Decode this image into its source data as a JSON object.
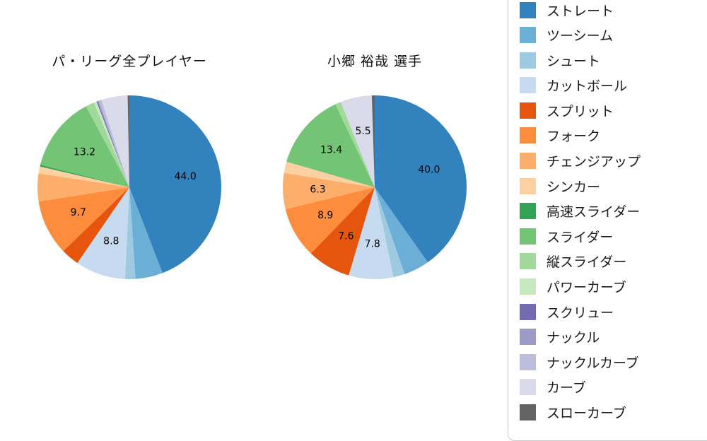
{
  "page": {
    "background": "#ffffff"
  },
  "legend": {
    "items": [
      {
        "label": "ストレート",
        "color": "#3182bd"
      },
      {
        "label": "ツーシーム",
        "color": "#6baed6"
      },
      {
        "label": "シュート",
        "color": "#9ecae1"
      },
      {
        "label": "カットボール",
        "color": "#c6dbef"
      },
      {
        "label": "スプリット",
        "color": "#e6550d"
      },
      {
        "label": "フォーク",
        "color": "#fd8d3c"
      },
      {
        "label": "チェンジアップ",
        "color": "#fdae6b"
      },
      {
        "label": "シンカー",
        "color": "#fdd0a2"
      },
      {
        "label": "高速スライダー",
        "color": "#31a354"
      },
      {
        "label": "スライダー",
        "color": "#74c476"
      },
      {
        "label": "縦スライダー",
        "color": "#a1d99b"
      },
      {
        "label": "パワーカーブ",
        "color": "#c7e9c0"
      },
      {
        "label": "スクリュー",
        "color": "#756bb1"
      },
      {
        "label": "ナックル",
        "color": "#9e9ac8"
      },
      {
        "label": "ナックルカーブ",
        "color": "#bcbddc"
      },
      {
        "label": "カーブ",
        "color": "#dadaeb"
      },
      {
        "label": "スローカーブ",
        "color": "#636363"
      }
    ]
  },
  "chart_data": [
    {
      "type": "pie",
      "title": "パ・リーグ全プレイヤー",
      "start_angle": "top",
      "direction": "clockwise",
      "slices": [
        {
          "name": "ストレート",
          "value": 44.0,
          "label": "44.0"
        },
        {
          "name": "ツーシーム",
          "value": 4.8
        },
        {
          "name": "シュート",
          "value": 1.8
        },
        {
          "name": "カットボール",
          "value": 8.8,
          "label": "8.8"
        },
        {
          "name": "スプリット",
          "value": 3.2
        },
        {
          "name": "フォーク",
          "value": 9.7,
          "label": "9.7"
        },
        {
          "name": "チェンジアップ",
          "value": 4.9
        },
        {
          "name": "シンカー",
          "value": 1.2
        },
        {
          "name": "高速スライダー",
          "value": 0.3
        },
        {
          "name": "スライダー",
          "value": 13.2,
          "label": "13.2"
        },
        {
          "name": "縦スライダー",
          "value": 1.5
        },
        {
          "name": "パワーカーブ",
          "value": 0.5
        },
        {
          "name": "スクリュー",
          "value": 0.2
        },
        {
          "name": "ナックル",
          "value": 0.2
        },
        {
          "name": "ナックルカーブ",
          "value": 0.5
        },
        {
          "name": "カーブ",
          "value": 4.6
        },
        {
          "name": "スローカーブ",
          "value": 0.3
        }
      ]
    },
    {
      "type": "pie",
      "title": "小郷 裕哉  選手",
      "start_angle": "top",
      "direction": "clockwise",
      "slices": [
        {
          "name": "ストレート",
          "value": 40.0,
          "label": "40.0"
        },
        {
          "name": "ツーシーム",
          "value": 4.5
        },
        {
          "name": "シュート",
          "value": 2.0
        },
        {
          "name": "カットボール",
          "value": 7.8,
          "label": "7.8"
        },
        {
          "name": "スプリット",
          "value": 7.6,
          "label": "7.6"
        },
        {
          "name": "フォーク",
          "value": 8.9,
          "label": "8.9"
        },
        {
          "name": "チェンジアップ",
          "value": 6.3,
          "label": "6.3"
        },
        {
          "name": "シンカー",
          "value": 2.0
        },
        {
          "name": "スライダー",
          "value": 13.4,
          "label": "13.4"
        },
        {
          "name": "縦スライダー",
          "value": 1.0
        },
        {
          "name": "カーブ",
          "value": 5.5,
          "label": "5.5"
        },
        {
          "name": "スローカーブ",
          "value": 0.5
        }
      ]
    }
  ]
}
